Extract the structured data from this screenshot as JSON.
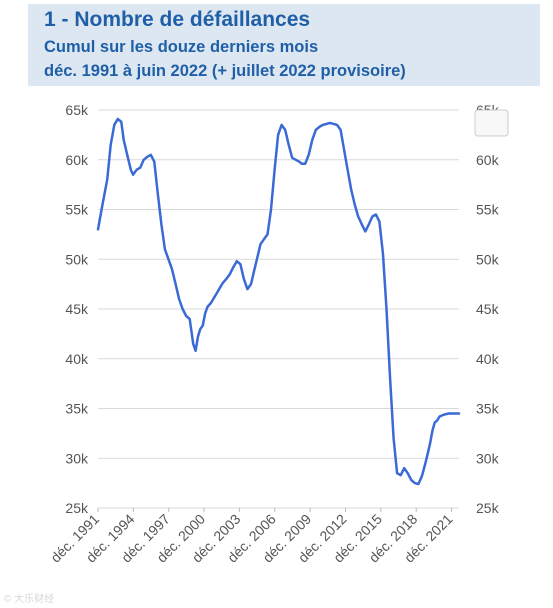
{
  "header": {
    "title": "1 - Nombre de défaillances",
    "subtitle_line1": "Cumul sur les douze derniers mois",
    "subtitle_line2": "déc. 1991 à juin 2022 (+ juillet 2022 provisoire)"
  },
  "watermark": "© 大乐财经",
  "colors": {
    "line": "#3a6ad6",
    "header_bg": "#dde7f2",
    "header_text": "#1f5fa8",
    "grid": "#d9d9d9"
  },
  "chart_data": {
    "type": "line",
    "title": "1 - Nombre de défaillances",
    "subtitle": "Cumul sur les douze derniers mois déc. 1991 à juin 2022 (+ juillet 2022 provisoire)",
    "xlabel": "",
    "ylabel": "",
    "ylim": [
      25000,
      65000
    ],
    "xlim": [
      1991.92,
      2022.55
    ],
    "y_ticks": [
      25000,
      30000,
      35000,
      40000,
      45000,
      50000,
      55000,
      60000,
      65000
    ],
    "y_tick_labels": [
      "25k",
      "30k",
      "35k",
      "40k",
      "45k",
      "50k",
      "55k",
      "60k",
      "65k"
    ],
    "x_ticks": [
      1991.92,
      1994.92,
      1997.92,
      2000.92,
      2003.92,
      2006.92,
      2009.92,
      2012.92,
      2015.92,
      2018.92,
      2021.92
    ],
    "x_tick_labels": [
      "déc. 1991",
      "déc. 1994",
      "déc. 1997",
      "déc. 2000",
      "déc. 2003",
      "déc. 2006",
      "déc. 2009",
      "déc. 2012",
      "déc. 2015",
      "déc. 2018",
      "déc. 2021"
    ],
    "grid": "horizontal",
    "dual_y_axis": true,
    "series": [
      {
        "name": "",
        "x": [
          1991.92,
          1992.3,
          1992.7,
          1993.0,
          1993.3,
          1993.6,
          1993.9,
          1994.1,
          1994.4,
          1994.7,
          1994.9,
          1995.2,
          1995.5,
          1995.8,
          1996.1,
          1996.4,
          1996.7,
          1997.0,
          1997.3,
          1997.6,
          1997.9,
          1998.2,
          1998.5,
          1998.8,
          1999.1,
          1999.4,
          1999.7,
          2000.0,
          2000.2,
          2000.4,
          2000.6,
          2000.8,
          2001.0,
          2001.2,
          2001.5,
          2001.7,
          2002.0,
          2002.3,
          2002.5,
          2002.8,
          2003.1,
          2003.4,
          2003.7,
          2004.0,
          2004.3,
          2004.6,
          2004.9,
          2005.2,
          2005.5,
          2005.7,
          2006.0,
          2006.3,
          2006.6,
          2006.9,
          2007.2,
          2007.5,
          2007.8,
          2008.1,
          2008.4,
          2008.7,
          2009.0,
          2009.2,
          2009.5,
          2009.8,
          2010.1,
          2010.4,
          2010.7,
          2011.0,
          2011.3,
          2011.6,
          2011.9,
          2012.2,
          2012.5,
          2012.8,
          2013.1,
          2013.4,
          2013.7,
          2014.0,
          2014.3,
          2014.6,
          2014.9,
          2015.2,
          2015.5,
          2015.8,
          2016.1,
          2016.4,
          2016.7,
          2017.0,
          2017.3,
          2017.6,
          2017.9,
          2018.2,
          2018.5,
          2018.8,
          2019.1,
          2019.4,
          2019.7,
          2019.9,
          2020.1,
          2020.3,
          2020.5,
          2020.7,
          2020.9,
          2021.1,
          2021.3,
          2021.5,
          2021.7,
          2021.9,
          2022.1,
          2022.3,
          2022.55
        ],
        "values": [
          53000,
          55500,
          58000,
          61500,
          63500,
          64100,
          63800,
          62000,
          60500,
          59000,
          58500,
          59000,
          59200,
          60000,
          60300,
          60500,
          59800,
          56500,
          53500,
          51000,
          50000,
          49000,
          47500,
          46000,
          45000,
          44300,
          44000,
          41500,
          40800,
          42200,
          43000,
          43300,
          44500,
          45200,
          45600,
          46000,
          46600,
          47200,
          47600,
          48000,
          48500,
          49200,
          49800,
          49500,
          48000,
          47000,
          47500,
          49000,
          50500,
          51500,
          52000,
          52500,
          55000,
          59000,
          62500,
          63500,
          63000,
          61500,
          60200,
          60000,
          59800,
          59600,
          59600,
          60500,
          62000,
          63000,
          63300,
          63500,
          63600,
          63700,
          63600,
          63500,
          63000,
          61000,
          59000,
          57000,
          55500,
          54300,
          53500,
          52800,
          53500,
          54300,
          54500,
          53800,
          50500,
          45000,
          38000,
          32000,
          28500,
          28300,
          29000,
          28500,
          27800,
          27500,
          27400,
          28200,
          29500,
          30500,
          31500,
          32800,
          33600,
          33800,
          34200,
          34300,
          34400,
          34450,
          34500,
          34500,
          34500,
          34500,
          34500
        ]
      }
    ]
  }
}
